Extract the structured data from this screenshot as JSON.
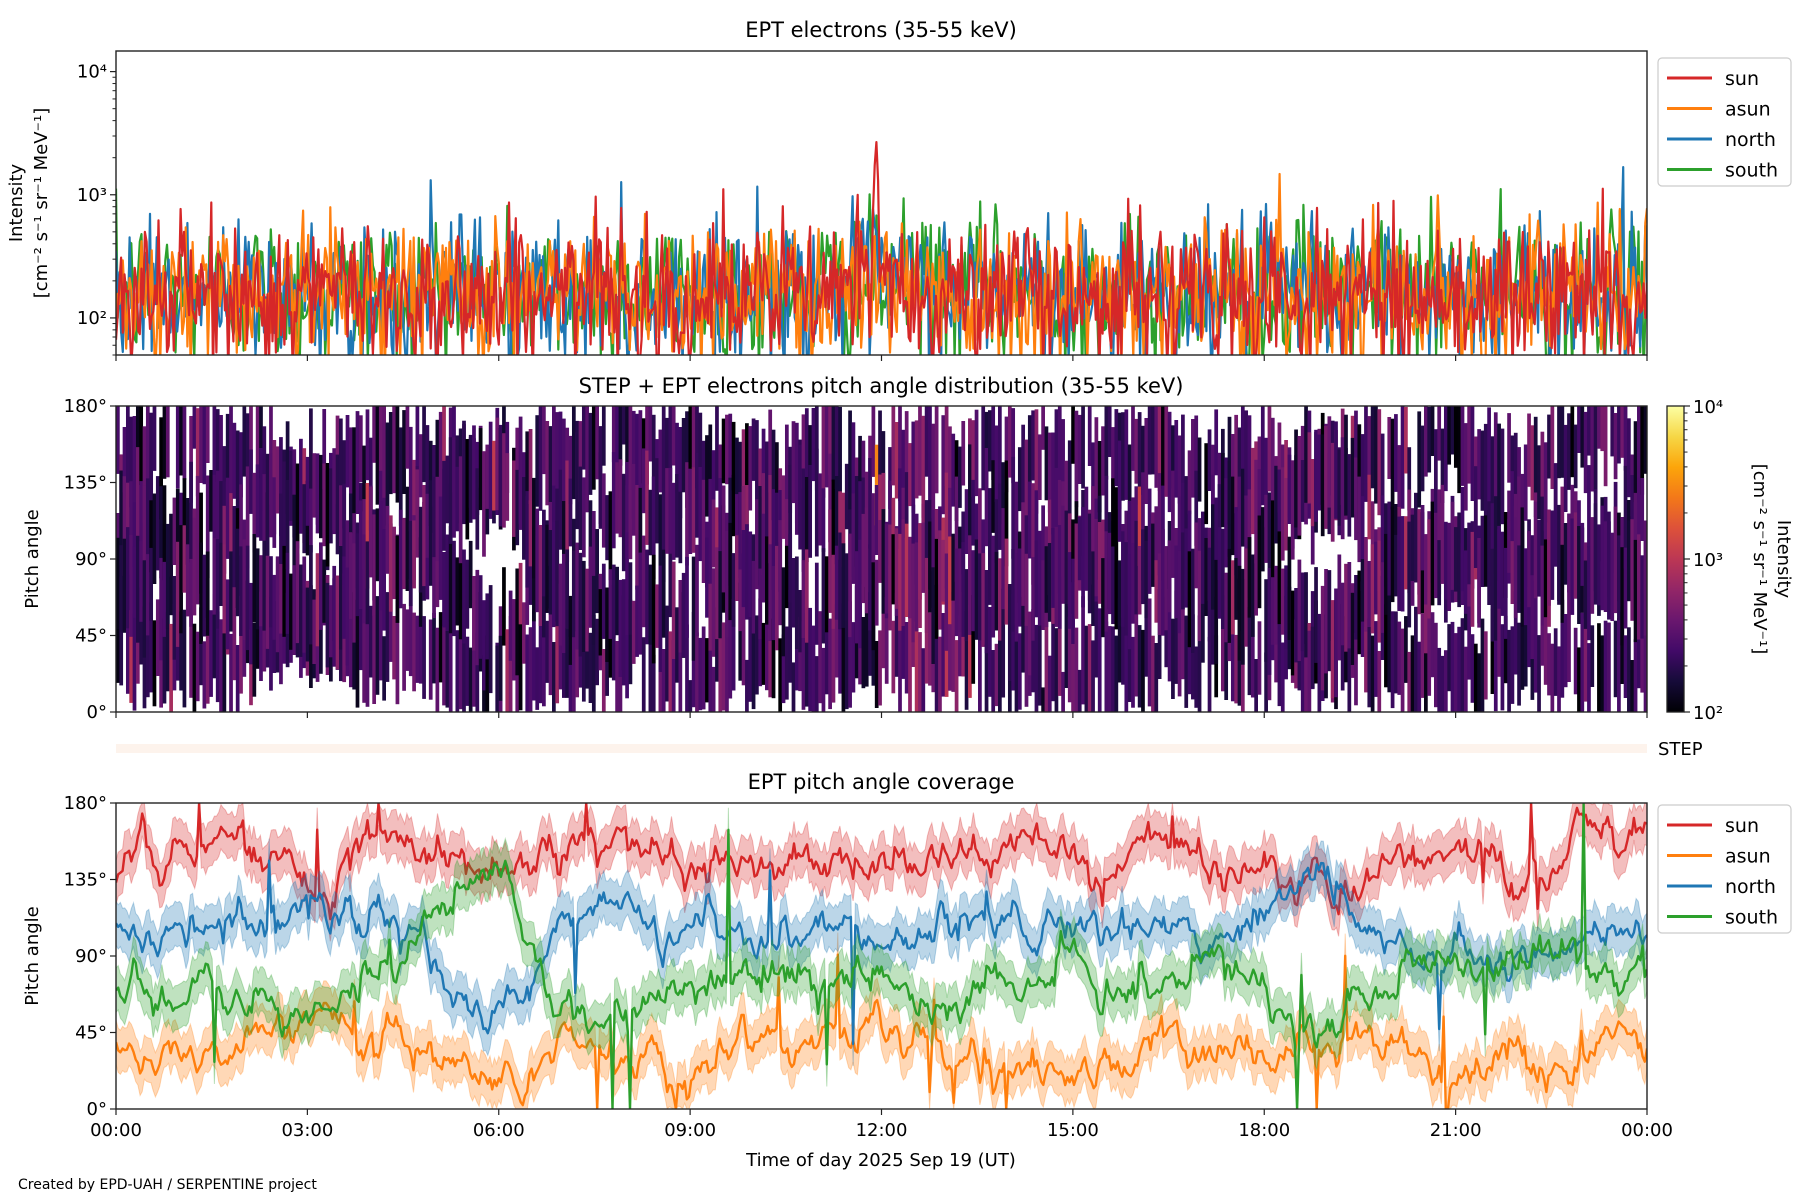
{
  "figure": {
    "xlabel": "Time of day 2025 Sep 19 (UT)",
    "footer": "Created by EPD-UAH / SERPENTINE project",
    "xticks": [
      "00:00",
      "03:00",
      "06:00",
      "09:00",
      "12:00",
      "15:00",
      "18:00",
      "21:00",
      "00:00"
    ],
    "xlim_hours": [
      0,
      24
    ]
  },
  "chart_data": [
    {
      "type": "line",
      "title": "EPT electrons (35-55 keV)",
      "ylabel": "Intensity",
      "ylabel_units": "[cm⁻² s⁻¹ sr⁻¹ MeV⁻¹]",
      "yscale": "log",
      "ylim": [
        50,
        14700
      ],
      "yticks": {
        "values": [
          100,
          1000,
          10000
        ],
        "labels": [
          "10²",
          "10³",
          "10⁴"
        ]
      },
      "legend": "right-outside",
      "x": [
        "00:00",
        "01:00",
        "02:00",
        "03:00",
        "04:00",
        "05:00",
        "06:00",
        "07:00",
        "08:00",
        "09:00",
        "10:00",
        "11:00",
        "12:00",
        "13:00",
        "14:00",
        "15:00",
        "16:00",
        "17:00",
        "18:00",
        "19:00",
        "20:00",
        "21:00",
        "22:00",
        "23:00",
        "24:00"
      ],
      "series": [
        {
          "name": "sun",
          "color": "#d62728",
          "values": [
            160,
            155,
            150,
            150,
            160,
            150,
            155,
            150,
            160,
            155,
            150,
            160,
            190,
            170,
            155,
            150,
            160,
            155,
            150,
            150,
            155,
            150,
            150,
            155,
            150
          ],
          "peak": {
            "time": "11:55",
            "value": 2700
          }
        },
        {
          "name": "asun",
          "color": "#ff7f0e",
          "values": [
            170,
            165,
            170,
            160,
            165,
            170,
            160,
            165,
            170,
            160,
            165,
            170,
            200,
            175,
            165,
            160,
            165,
            170,
            160,
            165,
            170,
            165,
            160,
            165,
            160
          ]
        },
        {
          "name": "north",
          "color": "#1f77b4",
          "values": [
            160,
            165,
            160,
            155,
            160,
            165,
            160,
            155,
            160,
            160,
            155,
            165,
            190,
            170,
            160,
            155,
            160,
            160,
            155,
            160,
            160,
            155,
            160,
            160,
            155
          ]
        },
        {
          "name": "south",
          "color": "#2ca02c",
          "values": [
            165,
            170,
            165,
            160,
            165,
            170,
            165,
            160,
            170,
            165,
            160,
            170,
            195,
            175,
            165,
            160,
            165,
            170,
            160,
            165,
            170,
            165,
            160,
            170,
            165
          ]
        }
      ]
    },
    {
      "type": "heatmap",
      "title": "STEP + EPT electrons pitch angle distribution (35-55 keV)",
      "ylabel": "Pitch angle",
      "ylim": [
        0,
        180
      ],
      "yticks": {
        "values": [
          0,
          45,
          90,
          135,
          180
        ],
        "labels": [
          "0°",
          "45°",
          "90°",
          "135°",
          "180°"
        ]
      },
      "colorbar": {
        "label": "Intensity",
        "label_units": "[cm⁻² s⁻¹ sr⁻¹ MeV⁻¹]",
        "colormap": "inferno",
        "scale": "log",
        "range": [
          100,
          10000
        ],
        "ticks": {
          "values": [
            100,
            1000,
            10000
          ],
          "labels": [
            "10²",
            "10³",
            "10⁴"
          ]
        }
      },
      "typical_intensity": 250,
      "step_label": "STEP",
      "step_color": "#fdf3ec"
    },
    {
      "type": "line",
      "title": "EPT pitch angle coverage",
      "ylabel": "Pitch angle",
      "ylim": [
        0,
        180
      ],
      "yticks": {
        "values": [
          0,
          45,
          90,
          135,
          180
        ],
        "labels": [
          "0°",
          "45°",
          "90°",
          "135°",
          "180°"
        ]
      },
      "legend": "right-outside",
      "x": [
        "00:00",
        "01:00",
        "02:00",
        "03:00",
        "04:00",
        "05:00",
        "06:00",
        "07:00",
        "08:00",
        "09:00",
        "10:00",
        "11:00",
        "12:00",
        "13:00",
        "14:00",
        "15:00",
        "16:00",
        "17:00",
        "18:00",
        "19:00",
        "20:00",
        "21:00",
        "22:00",
        "23:00",
        "24:00"
      ],
      "series": [
        {
          "name": "sun",
          "color": "#d62728",
          "values": [
            140,
            160,
            150,
            125,
            155,
            150,
            140,
            150,
            160,
            150,
            140,
            155,
            140,
            150,
            145,
            150,
            150,
            145,
            140,
            135,
            150,
            160,
            130,
            165,
            160
          ]
        },
        {
          "name": "asun",
          "color": "#ff7f0e",
          "values": [
            40,
            30,
            35,
            55,
            40,
            30,
            20,
            35,
            30,
            25,
            35,
            30,
            40,
            35,
            30,
            25,
            30,
            35,
            30,
            40,
            35,
            20,
            40,
            25,
            30
          ]
        },
        {
          "name": "north",
          "color": "#1f77b4",
          "values": [
            110,
            105,
            110,
            120,
            100,
            85,
            40,
            115,
            120,
            110,
            100,
            115,
            100,
            105,
            110,
            100,
            105,
            100,
            110,
            140,
            95,
            90,
            100,
            95,
            105
          ]
        },
        {
          "name": "south",
          "color": "#2ca02c",
          "values": [
            70,
            75,
            70,
            60,
            80,
            110,
            140,
            65,
            60,
            70,
            80,
            65,
            80,
            75,
            70,
            80,
            75,
            80,
            70,
            40,
            85,
            90,
            80,
            85,
            75
          ]
        }
      ]
    }
  ]
}
